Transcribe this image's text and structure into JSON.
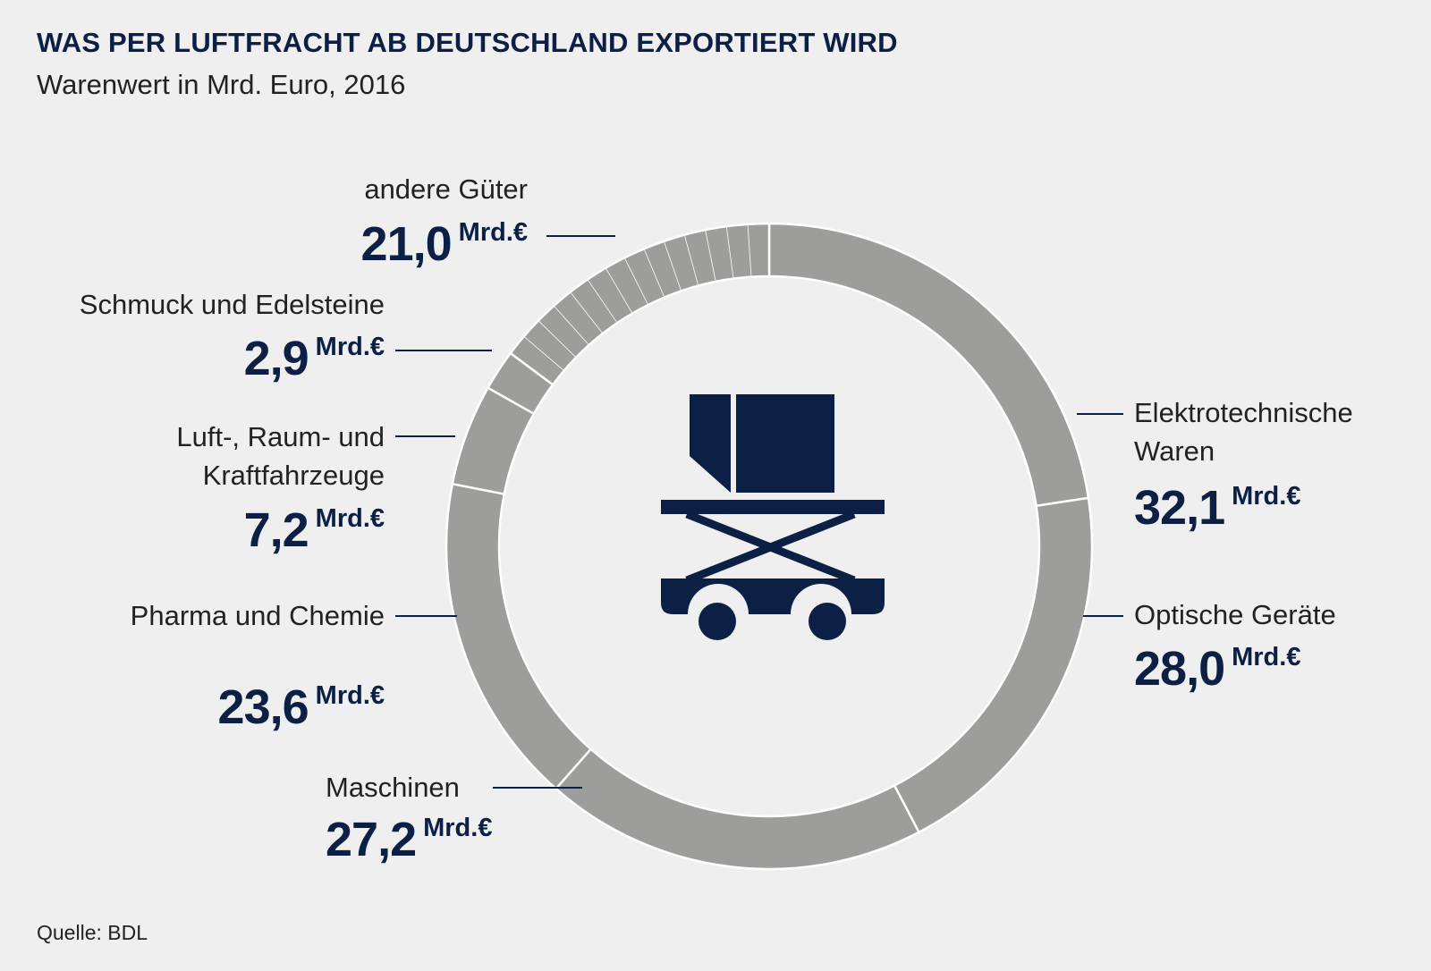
{
  "title": "WAS PER LUFTFRACHT AB DEUTSCHLAND EXPORTIERT WIRD",
  "subtitle": "Warenwert in Mrd. Euro, 2016",
  "source": "Quelle: BDL",
  "unit": "Mrd.€",
  "colors": {
    "segment": "#9d9d9c",
    "separator": "#ffffff",
    "accent": "#0c1f44",
    "background": "#efefef"
  },
  "icon": "cargo-lift-truck-icon",
  "chart_data": {
    "type": "pie",
    "variant": "donut",
    "title": "WAS PER LUFTFRACHT AB DEUTSCHLAND EXPORTIERT WIRD",
    "subtitle": "Warenwert in Mrd. Euro, 2016",
    "legend": "none",
    "slices": [
      {
        "label": "Elektrotechnische Waren",
        "value_text": "32,1",
        "value": 32.1
      },
      {
        "label": "Optische Geräte",
        "value_text": "28,0",
        "value": 28.0
      },
      {
        "label": "Maschinen",
        "value_text": "27,2",
        "value": 27.2
      },
      {
        "label": "Pharma und Chemie",
        "value_text": "23,6",
        "value": 23.6
      },
      {
        "label": "Luft-, Raum- und Kraftfahrzeuge",
        "value_text": "7,2",
        "value": 7.2
      },
      {
        "label": "Schmuck und Edelsteine",
        "value_text": "2,9",
        "value": 2.9
      },
      {
        "label": "andere Güter",
        "value_text": "21,0",
        "value": 21.0
      }
    ]
  }
}
